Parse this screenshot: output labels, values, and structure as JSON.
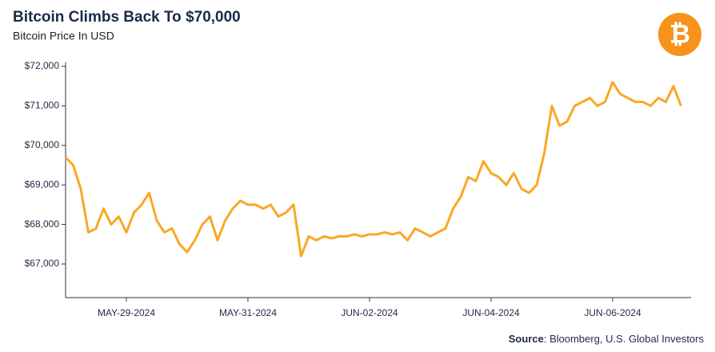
{
  "chart_data": {
    "type": "line",
    "title": "Bitcoin Climbs Back To $70,000",
    "subtitle": "Bitcoin Price In USD",
    "source_label": "Source",
    "source": ": Bloomberg, U.S. Global Investors",
    "logo_symbol": "₿",
    "categories": [
      null,
      null,
      null,
      null,
      null,
      null,
      null,
      null,
      "MAY-29-2024",
      null,
      null,
      null,
      null,
      null,
      null,
      null,
      null,
      null,
      null,
      null,
      null,
      null,
      null,
      null,
      "MAY-31-2024",
      null,
      null,
      null,
      null,
      null,
      null,
      null,
      null,
      null,
      null,
      null,
      null,
      null,
      null,
      null,
      "JUN-02-2024",
      null,
      null,
      null,
      null,
      null,
      null,
      null,
      null,
      null,
      null,
      null,
      null,
      null,
      null,
      null,
      "JUN-04-2024",
      null,
      null,
      null,
      null,
      null,
      null,
      null,
      null,
      null,
      null,
      null,
      null,
      null,
      null,
      null,
      "JUN-06-2024",
      null,
      null,
      null,
      null,
      null,
      null,
      null,
      null,
      null
    ],
    "series": [
      {
        "name": "Bitcoin Price",
        "color": "#f9a825",
        "values": [
          69700,
          69500,
          68900,
          67800,
          67900,
          68400,
          68000,
          68200,
          67800,
          68300,
          68500,
          68800,
          68100,
          67800,
          67900,
          67500,
          67300,
          67600,
          68000,
          68200,
          67600,
          68100,
          68400,
          68600,
          68500,
          68500,
          68400,
          68500,
          68200,
          68300,
          68500,
          67200,
          67700,
          67600,
          67700,
          67650,
          67700,
          67700,
          67750,
          67700,
          67750,
          67750,
          67800,
          67750,
          67800,
          67600,
          67900,
          67800,
          67700,
          67800,
          67900,
          68400,
          68700,
          69200,
          69100,
          69600,
          69300,
          69200,
          69000,
          69300,
          68900,
          68800,
          69000,
          69800,
          71000,
          70500,
          70600,
          71000,
          71100,
          71200,
          71000,
          71100,
          71600,
          71300,
          71200,
          71100,
          71100,
          71000,
          71200,
          71100,
          71500,
          71000
        ]
      }
    ],
    "ylim": [
      66150,
      72060
    ],
    "yticks": [
      {
        "value": 67000,
        "label": "$67,000"
      },
      {
        "value": 68000,
        "label": "$68,000"
      },
      {
        "value": 69000,
        "label": "$69,000"
      },
      {
        "value": 70000,
        "label": "$70,000"
      },
      {
        "value": 71000,
        "label": "$71,000"
      },
      {
        "value": 72000,
        "label": "$72,000"
      }
    ],
    "grid": false
  }
}
